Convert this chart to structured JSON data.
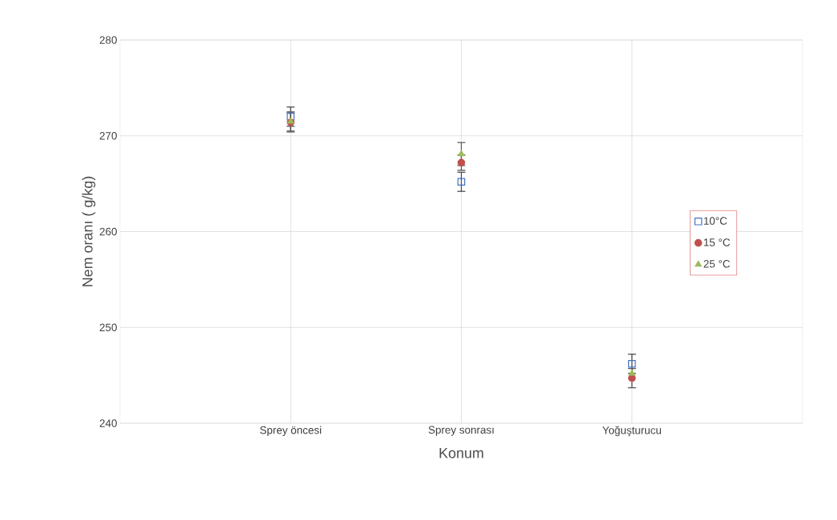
{
  "chart_data": {
    "type": "scatter",
    "xlabel": "Konum",
    "ylabel": "Nem oranı ( g/kg)",
    "categories": [
      "Sprey öncesi",
      "Sprey sonrası",
      "Yoğuşturucu"
    ],
    "series": [
      {
        "name": "10°C",
        "color": "#4472c4",
        "marker": "square",
        "values": [
          272.0,
          265.2,
          246.2
        ],
        "errors": [
          1,
          1,
          1
        ]
      },
      {
        "name": "15 °C",
        "color": "#c0504d",
        "marker": "circle",
        "values": [
          271.4,
          267.2,
          244.7
        ],
        "errors": [
          1,
          0.8,
          1
        ]
      },
      {
        "name": "25 °C",
        "color": "#9bbb59",
        "marker": "triangle",
        "values": [
          271.5,
          268.1,
          245.2
        ],
        "errors": [
          1,
          1.2,
          null
        ]
      }
    ],
    "ylim": [
      240,
      280
    ],
    "yticks": [
      240,
      250,
      260,
      270,
      280
    ],
    "grid": true,
    "legend": "right"
  }
}
